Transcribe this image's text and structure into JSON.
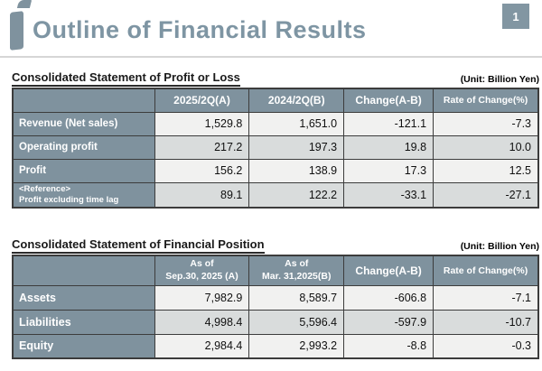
{
  "page": {
    "title": "Outline of Financial Results",
    "page_number": "1"
  },
  "colors": {
    "accent_slate": "#7F929E",
    "title_text": "#7E95A3",
    "page_box_bg": "#8296A2",
    "row_light": "#F1F1F0",
    "row_shaded": "#D9DCDC",
    "table_border": "#3C3C3C"
  },
  "tables": [
    {
      "title": "Consolidated Statement of Profit or Loss",
      "unit": "(Unit: Billion Yen)",
      "columns": [
        "",
        "2025/2Q(A)",
        "2024/2Q(B)",
        "Change(A-B)",
        "Rate of Change(%)"
      ],
      "rows": [
        {
          "label": "Revenue (Net sales)",
          "values": [
            "1,529.8",
            "1,651.0",
            "-121.1",
            "-7.3"
          ]
        },
        {
          "label": "Operating profit",
          "values": [
            "217.2",
            "197.3",
            "19.8",
            "10.0"
          ]
        },
        {
          "label": "Profit",
          "values": [
            "156.2",
            "138.9",
            "17.3",
            "12.5"
          ]
        },
        {
          "label": "<Reference>\nProfit excluding time lag",
          "values": [
            "89.1",
            "122.2",
            "-33.1",
            "-27.1"
          ]
        }
      ]
    },
    {
      "title": "Consolidated Statement of Financial Position",
      "unit": "(Unit: Billion Yen)",
      "columns": [
        "",
        "As of\nSep.30, 2025 (A)",
        "As of\nMar. 31,2025(B)",
        "Change(A-B)",
        "Rate of Change(%)"
      ],
      "rows": [
        {
          "label": "Assets",
          "values": [
            "7,982.9",
            "8,589.7",
            "-606.8",
            "-7.1"
          ]
        },
        {
          "label": "Liabilities",
          "values": [
            "4,998.4",
            "5,596.4",
            "-597.9",
            "-10.7"
          ]
        },
        {
          "label": "Equity",
          "values": [
            "2,984.4",
            "2,993.2",
            "-8.8",
            "-0.3"
          ]
        }
      ]
    }
  ]
}
